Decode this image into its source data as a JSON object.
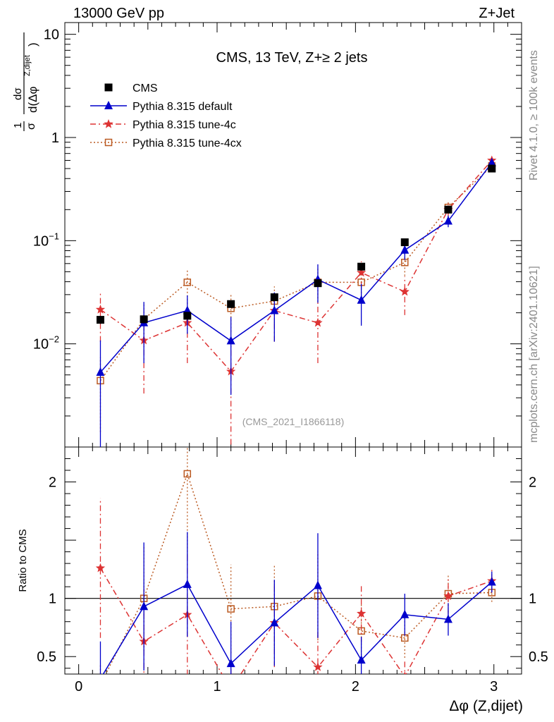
{
  "header": {
    "energy_label": "13000 GeV pp",
    "process_label": "Z+Jet"
  },
  "side_labels": {
    "rivet": "Rivet 4.1.0, ≥ 100k events",
    "mcplots": "mcplots.cern.ch [arXiv:2401.10621]"
  },
  "chart_data": {
    "type": "scatter",
    "title": "CMS, 13 TeV, Z+≥ 2 jets",
    "watermark": "(CMS_2021_I1866118)",
    "xlabel": "Δφ (Z,dijet)",
    "ylabel_main": "1/σ dσ/d(Δφ Z,dijet)",
    "ylabel_ratio": "Ratio to CMS",
    "xlim": [
      -0.1,
      3.2
    ],
    "ylim_main": [
      0.001,
      13
    ],
    "ylim_ratio": [
      0.35,
      2.3
    ],
    "x_ticks": [
      "0",
      "1",
      "2",
      "3"
    ],
    "y_ticks_main": [
      "10",
      "1",
      "10⁻¹",
      "10⁻²"
    ],
    "y_ticks_ratio": [
      "0.5",
      "1",
      "2"
    ],
    "ratio_reference": 1,
    "x": [
      0.157,
      0.471,
      0.785,
      1.1,
      1.414,
      1.728,
      2.042,
      2.356,
      2.67,
      2.985
    ],
    "series": [
      {
        "name": "CMS",
        "color": "#000000",
        "marker": "square",
        "style": "none",
        "values": [
          0.0171,
          0.0173,
          0.0187,
          0.0243,
          0.0283,
          0.0387,
          0.056,
          0.0965,
          0.2,
          0.5
        ],
        "err": [
          0.0015,
          0.0015,
          0.0015,
          0.002,
          0.0023,
          0.003,
          0.0045,
          0.0075,
          0.015,
          0.035
        ],
        "ratio": [
          1,
          1,
          1,
          1,
          1,
          1,
          1,
          1,
          1,
          1
        ],
        "ratio_err": [
          0,
          0,
          0,
          0,
          0,
          0,
          0,
          0,
          0,
          0
        ]
      },
      {
        "name": "Pythia 8.315 default",
        "color": "#0000cc",
        "marker": "triangle",
        "style": "solid",
        "values": [
          0.0053,
          0.016,
          0.021,
          0.0107,
          0.021,
          0.042,
          0.0265,
          0.081,
          0.155,
          0.57
        ],
        "err": [
          0.0055,
          0.0095,
          0.0085,
          0.0075,
          0.0105,
          0.017,
          0.0115,
          0.016,
          0.02,
          0.04
        ],
        "ratio": [
          0.31,
          0.93,
          1.12,
          0.44,
          0.79,
          1.11,
          0.47,
          0.86,
          0.82,
          1.14
        ],
        "ratio_err": [
          0.32,
          0.55,
          0.45,
          0.36,
          0.37,
          0.45,
          0.2,
          0.18,
          0.14,
          0.09
        ]
      },
      {
        "name": "Pythia 8.315 tune-4c",
        "color": "#dd3333",
        "marker": "star",
        "style": "dashdot",
        "values": [
          0.0215,
          0.0108,
          0.016,
          0.0054,
          0.021,
          0.016,
          0.049,
          0.032,
          0.2,
          0.6
        ],
        "err": [
          0.011,
          0.0075,
          0.0095,
          0.0048,
          0.0105,
          0.0095,
          0.014,
          0.013,
          0.03,
          0.05
        ],
        "ratio": [
          1.26,
          0.63,
          0.86,
          0.22,
          0.79,
          0.41,
          0.87,
          0.33,
          1.02,
          1.15
        ],
        "ratio_err": [
          0.6,
          0.45,
          0.52,
          0.2,
          0.38,
          0.3,
          0.25,
          0.14,
          0.16,
          0.1
        ]
      },
      {
        "name": "Pythia 8.315 tune-4cx",
        "color": "#bb5a22",
        "marker": "open-square",
        "style": "dotted",
        "values": [
          0.0044,
          0.0173,
          0.0395,
          0.0221,
          0.026,
          0.0395,
          0.0395,
          0.0615,
          0.21,
          0.53
        ],
        "err": [
          0.003,
          0.0075,
          0.013,
          0.009,
          0.01,
          0.014,
          0.013,
          0.016,
          0.03,
          0.05
        ],
        "ratio": [
          0.26,
          1.0,
          2.07,
          0.91,
          0.93,
          1.02,
          0.72,
          0.66,
          1.04,
          1.05
        ],
        "ratio_err": [
          0.18,
          0.45,
          0.7,
          0.38,
          0.36,
          0.38,
          0.24,
          0.17,
          0.16,
          0.08
        ]
      }
    ]
  }
}
